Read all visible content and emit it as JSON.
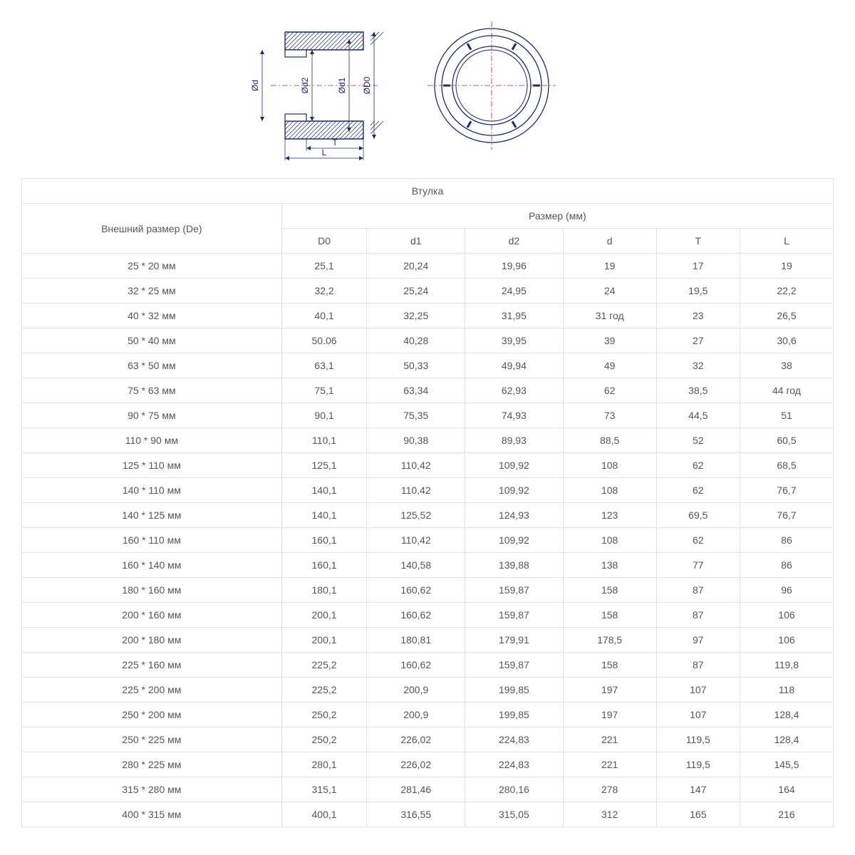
{
  "diagram": {
    "stroke": "#1a2a6c",
    "center": "#c02020",
    "labels": {
      "Od": "Ød",
      "Od2": "Ød2",
      "Od1": "Ød1",
      "OD0": "ØD0",
      "T": "T",
      "L": "L"
    }
  },
  "table": {
    "title": "Втулка",
    "header_col1": "Внешний размер (De)",
    "header_size": "Размер (мм)",
    "columns": [
      "D0",
      "d1",
      "d2",
      "d",
      "T",
      "L"
    ],
    "rows": [
      [
        "25 * 20 мм",
        "25,1",
        "20,24",
        "19,96",
        "19",
        "17",
        "19"
      ],
      [
        "32 * 25 мм",
        "32,2",
        "25,24",
        "24,95",
        "24",
        "19,5",
        "22,2"
      ],
      [
        "40 * 32 мм",
        "40,1",
        "32,25",
        "31,95",
        "31 год",
        "23",
        "26,5"
      ],
      [
        "50 * 40 мм",
        "50.06",
        "40,28",
        "39,95",
        "39",
        "27",
        "30,6"
      ],
      [
        "63 * 50 мм",
        "63,1",
        "50,33",
        "49,94",
        "49",
        "32",
        "38"
      ],
      [
        "75 * 63 мм",
        "75,1",
        "63,34",
        "62,93",
        "62",
        "38,5",
        "44 год"
      ],
      [
        "90 * 75 мм",
        "90,1",
        "75,35",
        "74,93",
        "73",
        "44,5",
        "51"
      ],
      [
        "110 * 90 мм",
        "110,1",
        "90,38",
        "89,93",
        "88,5",
        "52",
        "60,5"
      ],
      [
        "125 * 110 мм",
        "125,1",
        "110,42",
        "109,92",
        "108",
        "62",
        "68,5"
      ],
      [
        "140 * 110 мм",
        "140,1",
        "110,42",
        "109,92",
        "108",
        "62",
        "76,7"
      ],
      [
        "140 * 125 мм",
        "140,1",
        "125,52",
        "124,93",
        "123",
        "69,5",
        "76,7"
      ],
      [
        "160 * 110 мм",
        "160,1",
        "110,42",
        "109,92",
        "108",
        "62",
        "86"
      ],
      [
        "160 * 140 мм",
        "160,1",
        "140,58",
        "139,88",
        "138",
        "77",
        "86"
      ],
      [
        "180 * 160 мм",
        "180,1",
        "160,62",
        "159,87",
        "158",
        "87",
        "96"
      ],
      [
        "200 * 160 мм",
        "200,1",
        "160,62",
        "159,87",
        "158",
        "87",
        "106"
      ],
      [
        "200 * 180 мм",
        "200,1",
        "180,81",
        "179,91",
        "178,5",
        "97",
        "106"
      ],
      [
        "225 * 160 мм",
        "225,2",
        "160,62",
        "159,87",
        "158",
        "87",
        "119,8"
      ],
      [
        "225 * 200 мм",
        "225,2",
        "200,9",
        "199,85",
        "197",
        "107",
        "118"
      ],
      [
        "250 * 200 мм",
        "250,2",
        "200,9",
        "199,85",
        "197",
        "107",
        "128,4"
      ],
      [
        "250 * 225 мм",
        "250,2",
        "226,02",
        "224,83",
        "221",
        "119,5",
        "128,4"
      ],
      [
        "280 * 225 мм",
        "280,1",
        "226,02",
        "224,83",
        "221",
        "119,5",
        "145,5"
      ],
      [
        "315 * 280 мм",
        "315,1",
        "281,46",
        "280,16",
        "278",
        "147",
        "164"
      ],
      [
        "400 * 315 мм",
        "400,1",
        "316,55",
        "315,05",
        "312",
        "165",
        "216"
      ]
    ]
  }
}
